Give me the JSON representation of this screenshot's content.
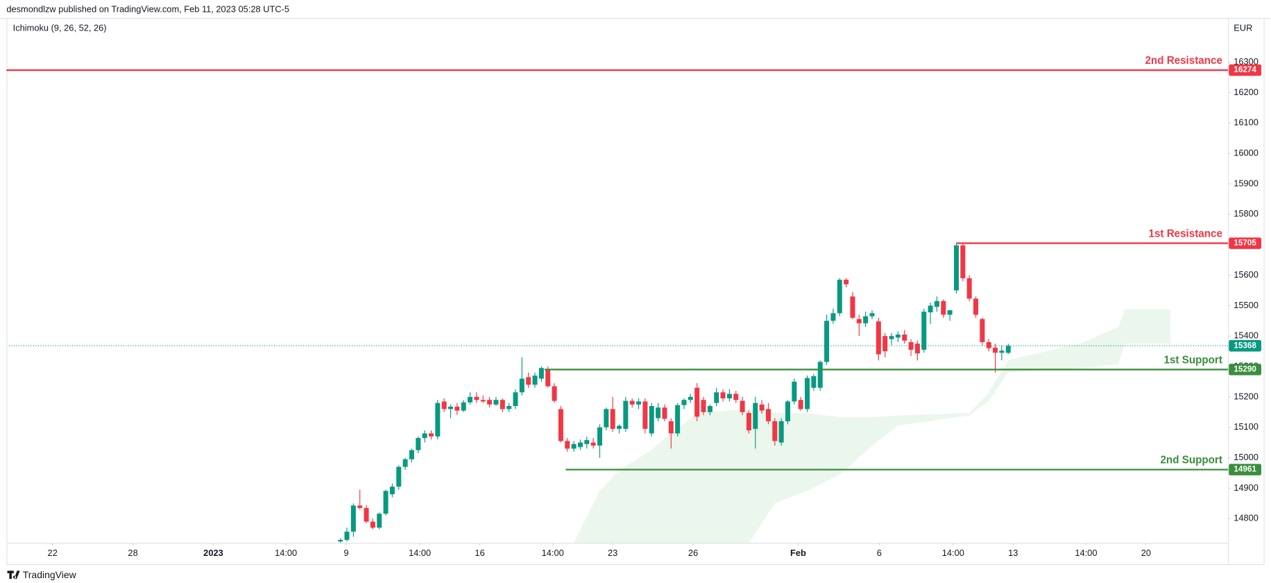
{
  "chart_data": {
    "type": "candlestick",
    "header": "desmondlzw published on TradingView.com, Feb 11, 2023 05:28 UTC-5",
    "indicator": "Ichimoku (9, 26, 52, 26)",
    "currency": "EUR",
    "brand": "TradingView",
    "up_color": "#089981",
    "down_color": "#f23645",
    "open": [
      14725,
      14730,
      14757,
      14843,
      14835,
      14790,
      14770,
      14816,
      14880,
      14905,
      14970,
      14995,
      15025,
      15065,
      15080,
      15070,
      15185,
      15160,
      15168,
      15155,
      15182,
      15200,
      15190,
      15190,
      15175,
      15190,
      15160,
      15170,
      15215,
      15265,
      15240,
      15260,
      15290,
      15235,
      15160,
      15055,
      15030,
      15035,
      15045,
      15050,
      15040,
      15100,
      15160,
      15095,
      15095,
      15187,
      15175,
      15185,
      15080,
      15130,
      15165,
      15120,
      15080,
      15173,
      15190,
      15230,
      15190,
      15150,
      15180,
      15215,
      15195,
      15210,
      15187,
      15147,
      15095,
      15175,
      15160,
      15120,
      15050,
      15120,
      15185,
      15190,
      15160,
      15230,
      15230,
      15315,
      15450,
      15475,
      15585,
      15530,
      15456,
      15442,
      15465,
      15448,
      15400,
      15390,
      15395,
      15405,
      15380,
      15375,
      15355,
      15478,
      15496,
      15515,
      15470,
      15550,
      15698,
      15590,
      15523,
      15456,
      15380,
      15362,
      15345,
      15345
    ],
    "high": [
      14735,
      14770,
      14850,
      14895,
      14845,
      14800,
      14820,
      14895,
      14915,
      14975,
      15000,
      15030,
      15070,
      15090,
      15090,
      15190,
      15195,
      15175,
      15180,
      15190,
      15215,
      15215,
      15205,
      15200,
      15200,
      15195,
      15180,
      15225,
      15330,
      15280,
      15280,
      15300,
      15300,
      15245,
      15170,
      15065,
      15055,
      15060,
      15070,
      15065,
      15110,
      15165,
      15200,
      15110,
      15200,
      15195,
      15195,
      15195,
      15180,
      15180,
      15175,
      15130,
      15180,
      15195,
      15210,
      15245,
      15200,
      15175,
      15230,
      15225,
      15225,
      15220,
      15200,
      15155,
      15200,
      15190,
      15180,
      15130,
      15130,
      15190,
      15260,
      15200,
      15270,
      15275,
      15320,
      15470,
      15490,
      15590,
      15590,
      15545,
      15470,
      15480,
      15485,
      15460,
      15410,
      15410,
      15415,
      15420,
      15390,
      15385,
      15490,
      15510,
      15530,
      15520,
      15485,
      15705,
      15705,
      15600,
      15530,
      15460,
      15390,
      15375,
      15370,
      15375
    ],
    "low": [
      14720,
      14725,
      14740,
      14830,
      14785,
      14765,
      14765,
      14810,
      14870,
      14895,
      14960,
      14985,
      15015,
      15050,
      15060,
      15060,
      15150,
      15130,
      15140,
      15150,
      15175,
      15180,
      15180,
      15165,
      15170,
      15150,
      15150,
      15160,
      15205,
      15230,
      15230,
      15250,
      15230,
      15180,
      15050,
      15020,
      15020,
      15025,
      15030,
      15030,
      15000,
      15090,
      15085,
      15080,
      15085,
      15165,
      15160,
      15080,
      15070,
      15120,
      15120,
      15030,
      15070,
      15160,
      15180,
      15120,
      15140,
      15140,
      15170,
      15185,
      15185,
      15180,
      15140,
      15080,
      15030,
      15145,
      15110,
      15040,
      15040,
      15110,
      15175,
      15155,
      15150,
      15220,
      15220,
      15305,
      15440,
      15465,
      15560,
      15455,
      15400,
      15430,
      15455,
      15320,
      15330,
      15370,
      15380,
      15375,
      15335,
      15320,
      15345,
      15440,
      15480,
      15460,
      15450,
      15540,
      15580,
      15515,
      15460,
      15370,
      15350,
      15280,
      15320,
      15340
    ],
    "close": [
      14730,
      14757,
      14843,
      14835,
      14790,
      14770,
      14816,
      14891,
      14905,
      14970,
      14995,
      15025,
      15065,
      15080,
      15070,
      15180,
      15160,
      15168,
      15155,
      15182,
      15200,
      15190,
      15185,
      15175,
      15190,
      15160,
      15170,
      15215,
      15260,
      15240,
      15270,
      15295,
      15235,
      15187,
      15055,
      15030,
      15045,
      15050,
      15058,
      15040,
      15100,
      15160,
      15095,
      15105,
      15187,
      15175,
      15185,
      15095,
      15170,
      15165,
      15128,
      15080,
      15173,
      15190,
      15200,
      15135,
      15150,
      15170,
      15215,
      15195,
      15210,
      15190,
      15150,
      15090,
      15180,
      15155,
      15120,
      15055,
      15120,
      15185,
      15250,
      15160,
      15262,
      15268,
      15315,
      15450,
      15475,
      15585,
      15570,
      15460,
      15442,
      15465,
      15475,
      15340,
      15350,
      15400,
      15405,
      15385,
      15355,
      15343,
      15480,
      15500,
      15515,
      15470,
      15485,
      15698,
      15590,
      15523,
      15470,
      15380,
      15360,
      15345,
      15352,
      15368
    ],
    "xlim": [
      -51.5,
      136.9
    ],
    "xticks": [
      {
        "value": -44.4,
        "label": "22"
      },
      {
        "value": -32,
        "label": "28"
      },
      {
        "value": -19.6,
        "label": "2023"
      },
      {
        "value": -8.4,
        "label": "14:00"
      },
      {
        "value": 0.9,
        "label": "9"
      },
      {
        "value": 12.25,
        "label": "14:00"
      },
      {
        "value": 21.5,
        "label": "16"
      },
      {
        "value": 32.75,
        "label": "14:00"
      },
      {
        "value": 42,
        "label": "23"
      },
      {
        "value": 54.4,
        "label": "26"
      },
      {
        "value": 70.6,
        "label": "Feb"
      },
      {
        "value": 83.1,
        "label": "6"
      },
      {
        "value": 94.5,
        "label": "14:00"
      },
      {
        "value": 103.75,
        "label": "13"
      },
      {
        "value": 115,
        "label": "14:00"
      },
      {
        "value": 124.25,
        "label": "20"
      }
    ],
    "ylim": [
      14720,
      16440
    ],
    "yticks": [
      14800,
      14900,
      15000,
      15100,
      15200,
      15300,
      15400,
      15500,
      15600,
      15700,
      15800,
      15900,
      16000,
      16100,
      16200,
      16300
    ],
    "last_price": 15368,
    "last_price_color": "#089981",
    "levels": [
      {
        "name": "2nd Resistance",
        "value": 16274,
        "color": "#f23645"
      },
      {
        "name": "1st Resistance",
        "value": 15705,
        "from": 95,
        "color": "#f23645"
      },
      {
        "name": "1st Support",
        "value": 15290,
        "from": 31.5,
        "color": "#388e3c"
      },
      {
        "name": "2nd Support",
        "value": 14961,
        "from": 34.75,
        "color": "#388e3c"
      }
    ],
    "cloud": {
      "color": "#e8f5e9",
      "x": [
        36,
        40,
        43,
        48,
        51,
        55,
        63,
        67,
        72,
        77,
        82,
        86,
        97,
        100,
        103,
        114,
        120,
        121,
        128
      ],
      "upper": [
        14720,
        14891,
        14958,
        15026,
        15079,
        15147,
        15160,
        15147,
        15147,
        15133,
        15133,
        15139,
        15147,
        15214,
        15321,
        15375,
        15429,
        15488,
        15488
      ],
      "lower": [
        14720,
        14720,
        14720,
        14720,
        14720,
        14720,
        14720,
        14851,
        14891,
        14945,
        15039,
        15106,
        15139,
        15187,
        15281,
        15294,
        15308,
        15375,
        15375
      ]
    }
  }
}
